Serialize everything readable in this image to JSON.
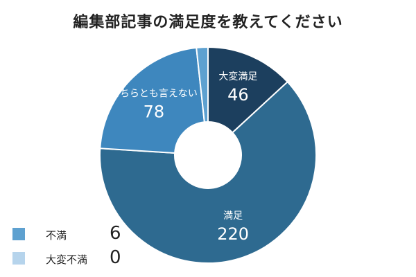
{
  "chart_data": {
    "type": "pie",
    "title": "編集部記事の満足度を教えてください",
    "categories": [
      "大変満足",
      "満足",
      "どちらとも言えない",
      "不満",
      "大変不満"
    ],
    "values": [
      46,
      220,
      78,
      6,
      0
    ],
    "colors": [
      "#1c3f5e",
      "#2e6a90",
      "#3e87be",
      "#5ea1d0",
      "#b6d4ec"
    ],
    "label_colors": [
      "#ffffff",
      "#ffffff",
      "#ffffff",
      "#222222",
      "#222222"
    ],
    "slice_labels_shown": [
      true,
      true,
      true,
      false,
      false
    ],
    "legend_shown": [
      false,
      false,
      false,
      true,
      true
    ],
    "legend_placement": "bottom-left",
    "donut": true
  }
}
